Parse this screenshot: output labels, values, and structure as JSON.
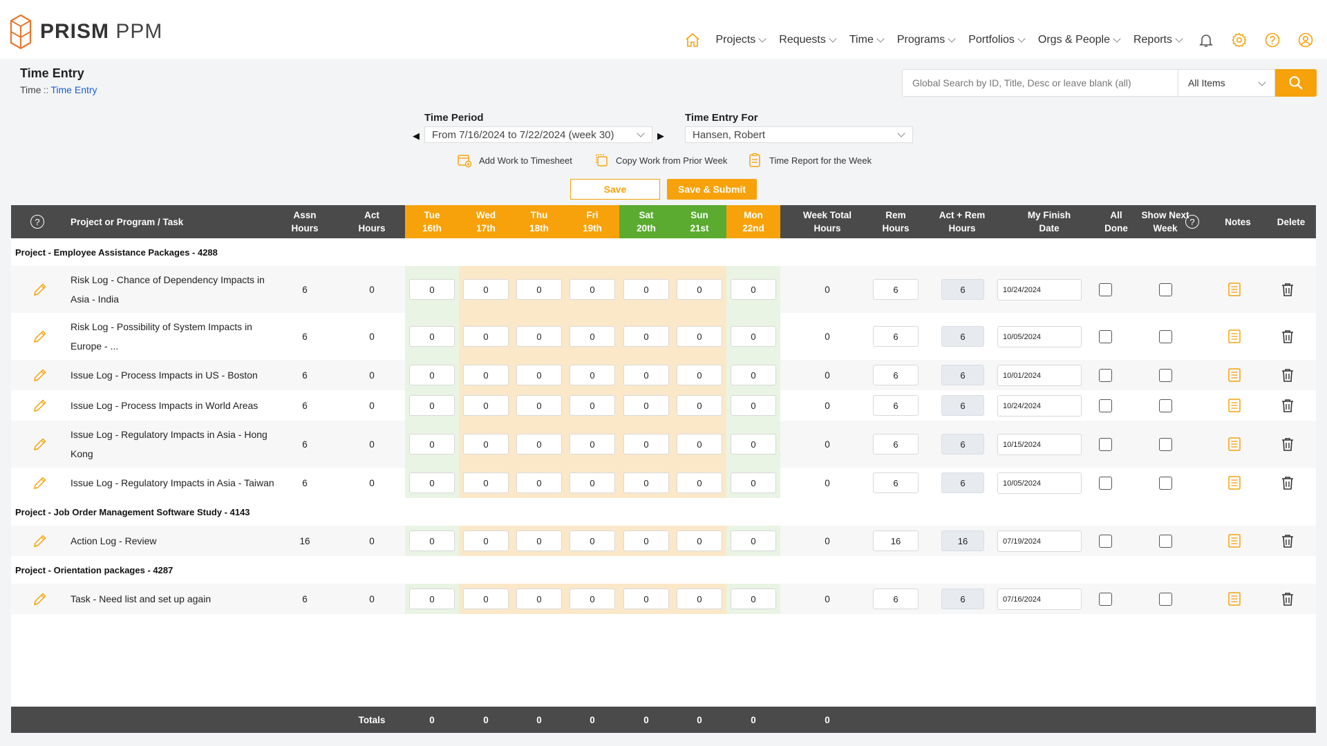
{
  "app": {
    "brand_bold": "PRISM",
    "brand_light": "PPM"
  },
  "nav": [
    "Projects",
    "Requests",
    "Time",
    "Programs",
    "Portfolios",
    "Orgs & People",
    "Reports"
  ],
  "page": {
    "title": "Time Entry",
    "breadcrumb_root": "Time",
    "breadcrumb_sep": "::",
    "breadcrumb_current": "Time Entry"
  },
  "search": {
    "placeholder": "Global Search by ID, Title, Desc or leave blank (all)",
    "scope": "All Items"
  },
  "filters": {
    "period_label": "Time Period",
    "period_value": "From 7/16/2024 to 7/22/2024 (week 30)",
    "for_label": "Time Entry For",
    "for_value": "Hansen, Robert"
  },
  "actions": {
    "add_work": "Add Work to Timesheet",
    "copy_work": "Copy Work from Prior Week",
    "report": "Time Report for the Week"
  },
  "buttons": {
    "save": "Save",
    "save_submit": "Save & Submit"
  },
  "columns": {
    "task": "Project or Program / Task",
    "assn_1": "Assn",
    "assn_2": "Hours",
    "act_1": "Act",
    "act_2": "Hours",
    "days": [
      {
        "d": "Tue",
        "n": "16th",
        "weekend": false
      },
      {
        "d": "Wed",
        "n": "17th",
        "weekend": false
      },
      {
        "d": "Thu",
        "n": "18th",
        "weekend": false
      },
      {
        "d": "Fri",
        "n": "19th",
        "weekend": false
      },
      {
        "d": "Sat",
        "n": "20th",
        "weekend": true
      },
      {
        "d": "Sun",
        "n": "21st",
        "weekend": true
      },
      {
        "d": "Mon",
        "n": "22nd",
        "weekend": false
      }
    ],
    "week_1": "Week Total",
    "week_2": "Hours",
    "rem_1": "Rem",
    "rem_2": "Hours",
    "actrem_1": "Act + Rem",
    "actrem_2": "Hours",
    "finish_1": "My Finish",
    "finish_2": "Date",
    "done_1": "All",
    "done_2": "Done",
    "next_1": "Show Next",
    "next_2": "Week",
    "notes": "Notes",
    "delete": "Delete"
  },
  "groups": [
    {
      "title": "Project - Employee Assistance Packages - 4288",
      "rows": [
        {
          "task": "Risk Log - Chance of Dependency Impacts in Asia - India",
          "assn": "6",
          "act": "0",
          "days": [
            "0",
            "0",
            "0",
            "0",
            "0",
            "0",
            "0"
          ],
          "week": "0",
          "rem": "6",
          "actrem": "6",
          "finish": "10/24/2024"
        },
        {
          "task": "Risk Log - Possibility of System Impacts in Europe - ...",
          "assn": "6",
          "act": "0",
          "days": [
            "0",
            "0",
            "0",
            "0",
            "0",
            "0",
            "0"
          ],
          "week": "0",
          "rem": "6",
          "actrem": "6",
          "finish": "10/05/2024"
        },
        {
          "task": "Issue Log - Process Impacts in US - Boston",
          "assn": "6",
          "act": "0",
          "days": [
            "0",
            "0",
            "0",
            "0",
            "0",
            "0",
            "0"
          ],
          "week": "0",
          "rem": "6",
          "actrem": "6",
          "finish": "10/01/2024"
        },
        {
          "task": "Issue Log - Process Impacts in World Areas",
          "assn": "6",
          "act": "0",
          "days": [
            "0",
            "0",
            "0",
            "0",
            "0",
            "0",
            "0"
          ],
          "week": "0",
          "rem": "6",
          "actrem": "6",
          "finish": "10/24/2024"
        },
        {
          "task": "Issue Log - Regulatory Impacts in Asia - Hong Kong",
          "assn": "6",
          "act": "0",
          "days": [
            "0",
            "0",
            "0",
            "0",
            "0",
            "0",
            "0"
          ],
          "week": "0",
          "rem": "6",
          "actrem": "6",
          "finish": "10/15/2024"
        },
        {
          "task": "Issue Log - Regulatory Impacts in Asia - Taiwan",
          "assn": "6",
          "act": "0",
          "days": [
            "0",
            "0",
            "0",
            "0",
            "0",
            "0",
            "0"
          ],
          "week": "0",
          "rem": "6",
          "actrem": "6",
          "finish": "10/05/2024"
        }
      ]
    },
    {
      "title": "Project - Job Order Management Software Study - 4143",
      "rows": [
        {
          "task": "Action Log - Review",
          "assn": "16",
          "act": "0",
          "days": [
            "0",
            "0",
            "0",
            "0",
            "0",
            "0",
            "0"
          ],
          "week": "0",
          "rem": "16",
          "actrem": "16",
          "finish": "07/19/2024"
        }
      ]
    },
    {
      "title": "Project - Orientation packages - 4287",
      "rows": [
        {
          "task": "Task - Need list and set up again",
          "assn": "6",
          "act": "0",
          "days": [
            "0",
            "0",
            "0",
            "0",
            "0",
            "0",
            "0"
          ],
          "week": "0",
          "rem": "6",
          "actrem": "6",
          "finish": "07/16/2024"
        }
      ]
    }
  ],
  "totals": {
    "label": "Totals",
    "days": [
      "0",
      "0",
      "0",
      "0",
      "0",
      "0",
      "0"
    ],
    "week": "0"
  },
  "colors": {
    "accent": "#f7a20a",
    "weekend": "#5aab2f",
    "header_bg": "#4a4a4a"
  }
}
